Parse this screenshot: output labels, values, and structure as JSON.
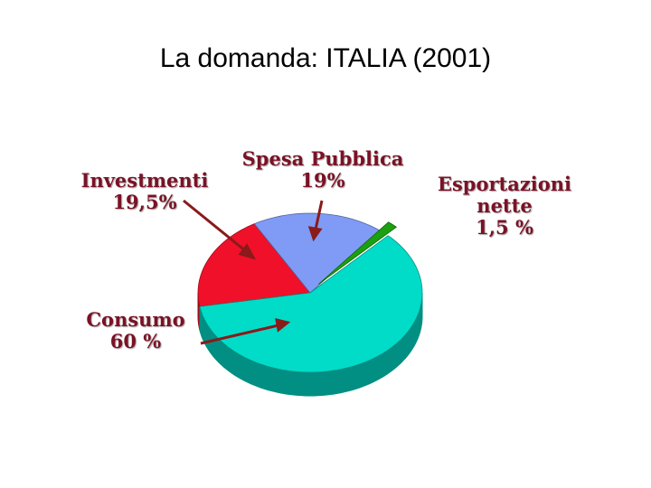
{
  "chart_data": {
    "type": "pie",
    "title": "La domanda: ITALIA (2001)",
    "categories": [
      "Investmenti",
      "Spesa Pubblica",
      "Esportazioni nette",
      "Consumo"
    ],
    "values": [
      19.5,
      19,
      1.5,
      60
    ],
    "value_labels": [
      "19,5%",
      "19%",
      "1,5 %",
      "60 %"
    ],
    "colors": [
      "#f0102a",
      "#7f9bf5",
      "#1aa010",
      "#00dcc8"
    ]
  }
}
